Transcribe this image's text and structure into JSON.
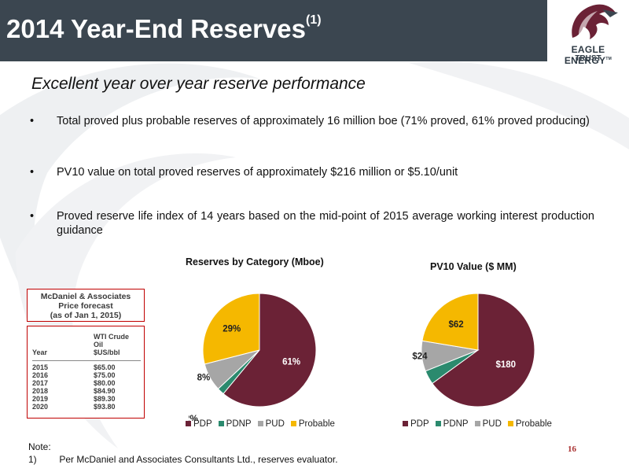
{
  "header": {
    "title": "2014 Year-End Reserves",
    "title_sup": "(1)"
  },
  "logo": {
    "line1": "EAGLE ENERGY",
    "tm": "TM",
    "line2": "TRUST",
    "icon": "eagle-head-icon"
  },
  "subtitle": "Excellent year over year reserve performance",
  "bullets": [
    {
      "marker": "•",
      "text": "Total proved plus probable reserves of approximately 16 million boe (71% proved, 61% proved producing)"
    },
    {
      "marker": "•",
      "text": "PV10 value on total proved reserves of approximately $216 million or $5.10/unit"
    },
    {
      "marker": "•",
      "text": "Proved reserve life index of 14 years based on the mid-point of 2015 average working interest production guidance"
    }
  ],
  "forecast": {
    "title_lines": [
      "McDaniel & Associates",
      "Price forecast",
      "(as of Jan 1, 2015)"
    ],
    "col_year": "Year",
    "col_price_lines": [
      "WTI Crude",
      "Oil",
      "$US/bbl"
    ],
    "rows": [
      {
        "year": "2015",
        "price": "$65.00"
      },
      {
        "year": "2016",
        "price": "$75.00"
      },
      {
        "year": "2017",
        "price": "$80.00"
      },
      {
        "year": "2018",
        "price": "$84.90"
      },
      {
        "year": "2019",
        "price": "$89.30"
      },
      {
        "year": "2020",
        "price": "$93.80"
      }
    ]
  },
  "colors": {
    "PDP": "#6b2236",
    "PDNP": "#2b8a6e",
    "PUD": "#a6a6a6",
    "Probable": "#f5b800",
    "header_bg": "#3b4650"
  },
  "chart_data": [
    {
      "type": "pie",
      "title": "Reserves by Category (Mboe)",
      "categories": [
        "PDP",
        "PDNP",
        "PUD",
        "Probable"
      ],
      "values": [
        61,
        2,
        8,
        29
      ],
      "labels": [
        "61%",
        "2%",
        "8%",
        "29%"
      ],
      "legend_position": "bottom"
    },
    {
      "type": "pie",
      "title": "PV10 Value ($ MM)",
      "categories": [
        "PDP",
        "PDNP",
        "PUD",
        "Probable"
      ],
      "values": [
        180,
        11,
        24,
        62
      ],
      "labels": [
        "$180",
        "$11",
        "$24",
        "$62"
      ],
      "legend_position": "bottom"
    }
  ],
  "footer": {
    "note_label": "Note:",
    "note_num": "1)",
    "note_text": "Per McDaniel and Associates Consultants Ltd., reserves evaluator.",
    "page_number": "16"
  }
}
